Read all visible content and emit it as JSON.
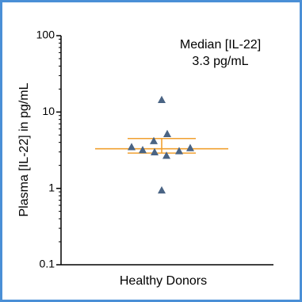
{
  "chart_data": {
    "type": "scatter",
    "title": "",
    "ylabel": "Plasma [IL-22] in pg/mL",
    "xlabel": "",
    "categories": [
      "Healthy Donors"
    ],
    "y_scale": "log",
    "ylim": [
      0.1,
      100
    ],
    "y_ticks": [
      {
        "value": 100,
        "label": "100"
      },
      {
        "value": 10,
        "label": "10"
      },
      {
        "value": 1,
        "label": "1"
      },
      {
        "value": 0.1,
        "label": "0.1"
      }
    ],
    "points": [
      3.5,
      3.2,
      4.2,
      3.0,
      14.5,
      2.7,
      5.2,
      3.1,
      3.4,
      0.95
    ],
    "median": 3.3,
    "iqr": [
      2.9,
      4.5
    ],
    "annotation": [
      "Median [IL-22]",
      "3.3 pg/mL"
    ],
    "colors": {
      "points": "#4a6484",
      "median_line": "#f0a030",
      "border": "#4a8fd6"
    },
    "grid": false,
    "legend": "none"
  }
}
